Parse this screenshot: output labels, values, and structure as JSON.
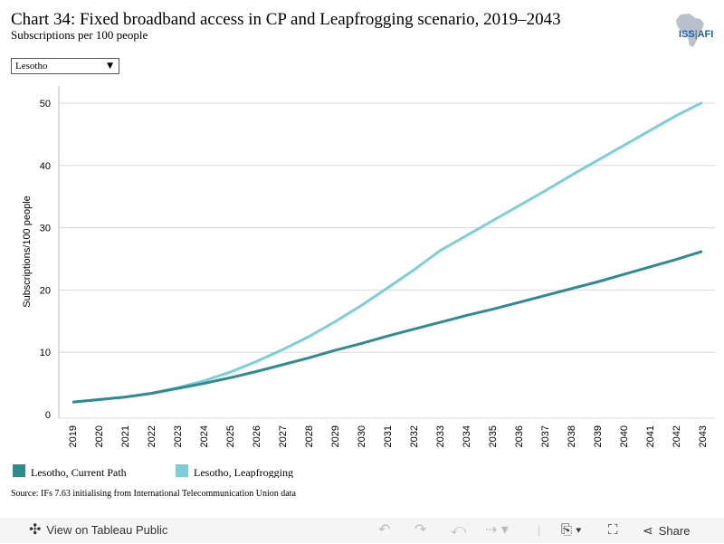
{
  "title": "Chart 34: Fixed broadband access in CP and Leapfrogging scenario, 2019–2043",
  "subtitle": "Subscriptions per 100 people",
  "logo": {
    "text": "ISS",
    "text_suffix": "AFI",
    "icon": "africa-map-icon"
  },
  "dropdown": {
    "selected": "Lesotho",
    "icon": "chevron-down-icon"
  },
  "source": "Source: IFs 7.63 initialising from International Telecommunication Union data",
  "toolbar": {
    "view_label": "View on Tableau Public",
    "share_label": "Share",
    "icons": [
      "tableau-logo-icon",
      "undo-icon",
      "redo-icon",
      "revert-icon",
      "refresh-icon",
      "download-icon",
      "fullscreen-icon",
      "share-icon"
    ]
  },
  "colors": {
    "current_path": "#2e8b8f",
    "leapfrogging": "#7ad0d6",
    "grid": "#d9d9d9"
  },
  "chart_data": {
    "type": "line",
    "title": "Chart 34: Fixed broadband access in CP and Leapfrogging scenario, 2019–2043",
    "subtitle": "Subscriptions per 100 people",
    "xlabel": "",
    "ylabel": "Subscriptions/100 people",
    "ylim": [
      0,
      52
    ],
    "yticks": [
      0,
      10,
      20,
      30,
      40,
      50
    ],
    "x": [
      2019,
      2020,
      2021,
      2022,
      2023,
      2024,
      2025,
      2026,
      2027,
      2028,
      2029,
      2030,
      2031,
      2032,
      2033,
      2034,
      2035,
      2036,
      2037,
      2038,
      2039,
      2040,
      2041,
      2042,
      2043
    ],
    "series": [
      {
        "name": "Lesotho, Current Path",
        "values": [
          2.0,
          2.4,
          2.8,
          3.4,
          4.2,
          5.0,
          5.9,
          6.9,
          8.0,
          9.1,
          10.3,
          11.4,
          12.6,
          13.7,
          14.8,
          15.9,
          16.9,
          18.0,
          19.1,
          20.2,
          21.3,
          22.5,
          23.7,
          24.9,
          26.2
        ]
      },
      {
        "name": "Lesotho, Leapfrogging",
        "values": [
          2.0,
          2.4,
          2.8,
          3.4,
          4.3,
          5.4,
          6.8,
          8.5,
          10.4,
          12.5,
          14.9,
          17.5,
          20.3,
          23.2,
          26.3,
          28.7,
          31.1,
          33.5,
          35.9,
          38.4,
          40.8,
          43.2,
          45.6,
          48.0,
          50.1
        ]
      }
    ],
    "legend_position": "bottom",
    "grid": "horizontal"
  }
}
